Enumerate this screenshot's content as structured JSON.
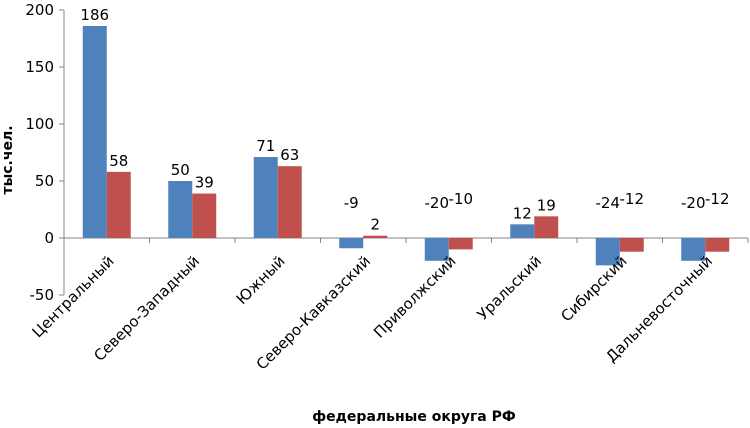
{
  "chart_data": {
    "type": "bar",
    "title": "",
    "xlabel": "федеральные округа РФ",
    "ylabel": "тыс.чел.",
    "ylim": [
      -50,
      200
    ],
    "yticks": [
      -50,
      0,
      50,
      100,
      150,
      200
    ],
    "yticks_labels": [
      "-50",
      "0",
      "50",
      "100",
      "150",
      "200"
    ],
    "grid": false,
    "categories": [
      "Центральный",
      "Северо-Западный",
      "Южный",
      "Северо-Кавказский",
      "Приволжский",
      "Уральский",
      "Сибирский",
      "Дальневосточный"
    ],
    "series": [
      {
        "values": [
          186,
          50,
          71,
          -9,
          -20,
          12,
          -24,
          -20
        ],
        "labels": [
          "186",
          "50",
          "71",
          "-9",
          "-20",
          "12",
          "-24",
          "-20"
        ],
        "color": "#4f81bd"
      },
      {
        "values": [
          58,
          39,
          63,
          2,
          -10,
          19,
          -12,
          -12
        ],
        "labels": [
          "58",
          "39",
          "63",
          "2",
          "-10",
          "19",
          "-12",
          "-12"
        ],
        "color": "#c0504d"
      }
    ]
  }
}
